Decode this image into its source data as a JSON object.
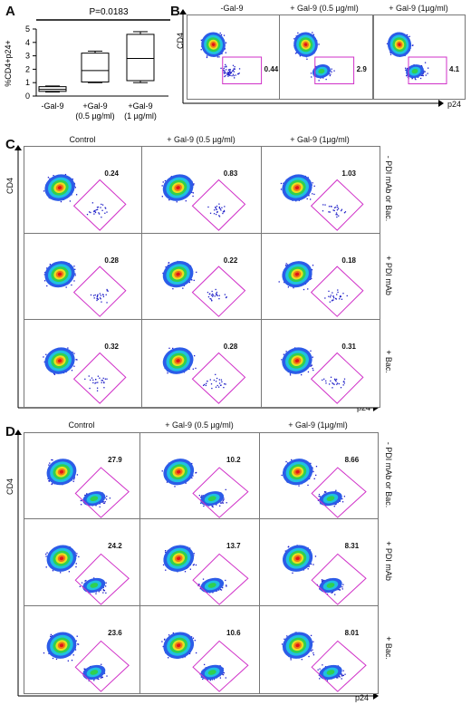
{
  "panelA": {
    "label": "A",
    "pvalue": "P=0.0183",
    "ylabel": "%CD4+p24+",
    "yticks": [
      "0",
      "1",
      "2",
      "3",
      "4",
      "5"
    ],
    "groups": [
      {
        "l1": "-Gal-9",
        "l2": ""
      },
      {
        "l1": "+Gal-9",
        "l2": "(0.5 µg/ml)"
      },
      {
        "l1": "+Gal-9",
        "l2": "(1 µg/ml)"
      }
    ]
  },
  "chart_data": {
    "type": "box",
    "categories": [
      "-Gal-9",
      "+Gal-9 (0.5 µg/ml)",
      "+Gal-9 (1 µg/ml)"
    ],
    "ylabel": "%CD4+p24+",
    "ylim": [
      0,
      5
    ],
    "boxes": [
      {
        "min": 0.3,
        "q1": 0.35,
        "median": 0.5,
        "q3": 0.7,
        "max": 0.75
      },
      {
        "min": 1.0,
        "q1": 1.05,
        "median": 1.9,
        "q3": 3.2,
        "max": 3.35
      },
      {
        "min": 1.0,
        "q1": 1.15,
        "median": 2.8,
        "q3": 4.6,
        "max": 4.8
      }
    ],
    "annotation": "P=0.0183"
  },
  "panelB": {
    "label": "B",
    "ylabel": "CD4",
    "xlabel": "p24",
    "columns": [
      "-Gal-9",
      "+ Gal-9 (0.5 µg/ml)",
      "+ Gal-9 (1µg/ml)"
    ],
    "values": [
      "0.44",
      "2.9",
      "4.1"
    ]
  },
  "panelC": {
    "label": "C",
    "ylabel": "CD4",
    "xlabel": "p24",
    "columns": [
      "Control",
      "+ Gal-9 (0.5 µg/ml)",
      "+ Gal-9 (1µg/ml)"
    ],
    "rows": [
      "- PDI mAb or Bac.",
      "+ PDI mAb",
      "+ Bac."
    ],
    "values": [
      [
        "0.24",
        "0.83",
        "1.03"
      ],
      [
        "0.28",
        "0.22",
        "0.18"
      ],
      [
        "0.32",
        "0.28",
        "0.31"
      ]
    ]
  },
  "panelD": {
    "label": "D",
    "ylabel": "CD4",
    "xlabel": "p24",
    "columns": [
      "Control",
      "+ Gal-9 (0.5 µg/ml)",
      "+ Gal-9 (1µg/ml)"
    ],
    "rows": [
      "- PDI mAb or Bac.",
      "+ PDI mAb",
      "+ Bac."
    ],
    "values": [
      [
        "27.9",
        "10.2",
        "8.66"
      ],
      [
        "24.2",
        "13.7",
        "8.31"
      ],
      [
        "23.6",
        "10.6",
        "8.01"
      ]
    ]
  }
}
